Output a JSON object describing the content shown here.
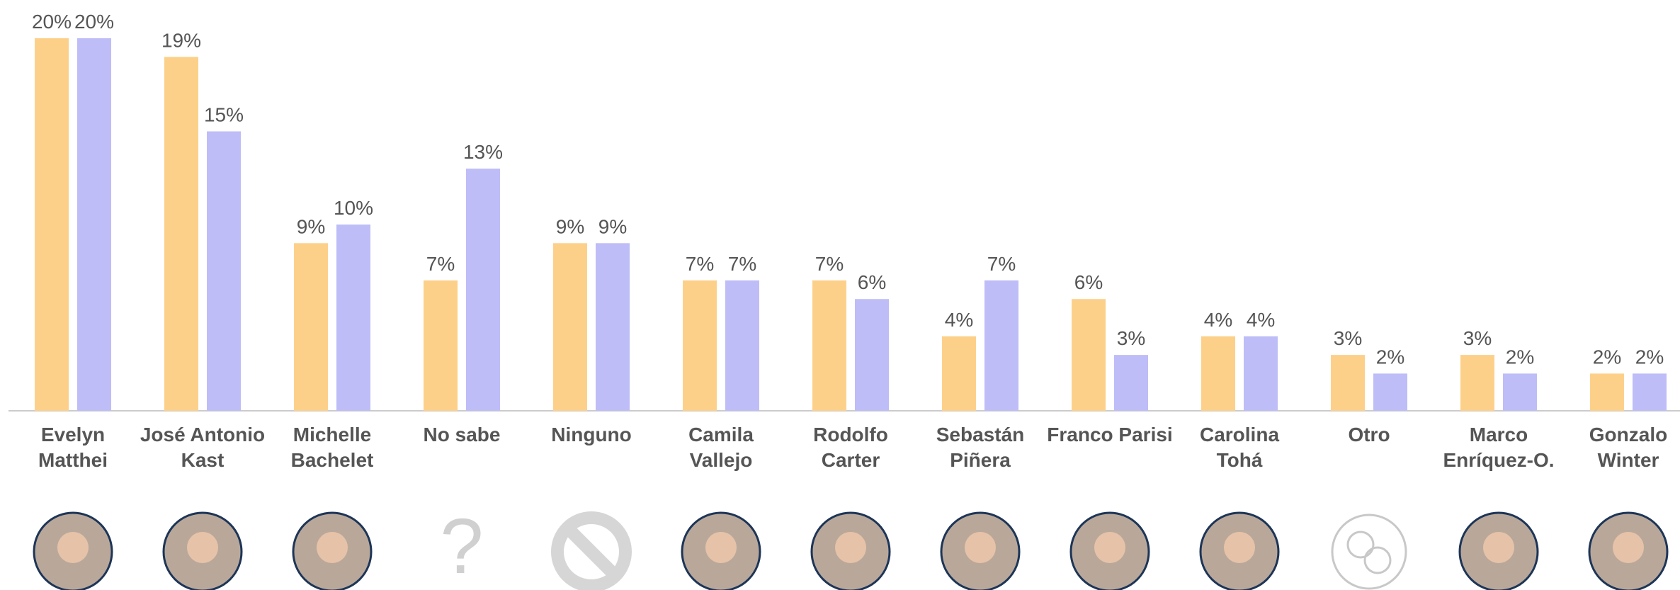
{
  "chart_data": {
    "type": "bar",
    "categories": [
      "Evelyn Matthei",
      "José Antonio Kast",
      "Michelle Bachelet",
      "No sabe",
      "Ninguno",
      "Camila Vallejo",
      "Rodolfo Carter",
      "Sebastán Piñera",
      "Franco Parisi",
      "Carolina Tohá",
      "Otro",
      "Marco Enríquez-O.",
      "Gonzalo Winter"
    ],
    "series": [
      {
        "color": "#fdd08a",
        "values": [
          20,
          19,
          9,
          7,
          9,
          7,
          7,
          4,
          6,
          4,
          3,
          3,
          2
        ],
        "value_labels": [
          "20%",
          "19%",
          "9%",
          "7%",
          "9%",
          "7%",
          "7%",
          "4%",
          "6%",
          "4%",
          "3%",
          "3%",
          "2%"
        ]
      },
      {
        "color": "#bebdf8",
        "values": [
          20,
          15,
          10,
          13,
          9,
          7,
          6,
          7,
          3,
          4,
          2,
          2,
          2
        ],
        "value_labels": [
          "20%",
          "15%",
          "10%",
          "13%",
          "9%",
          "7%",
          "6%",
          "7%",
          "3%",
          "4%",
          "2%",
          "2%",
          "2%"
        ]
      }
    ],
    "ylim": [
      0,
      20
    ]
  }
}
